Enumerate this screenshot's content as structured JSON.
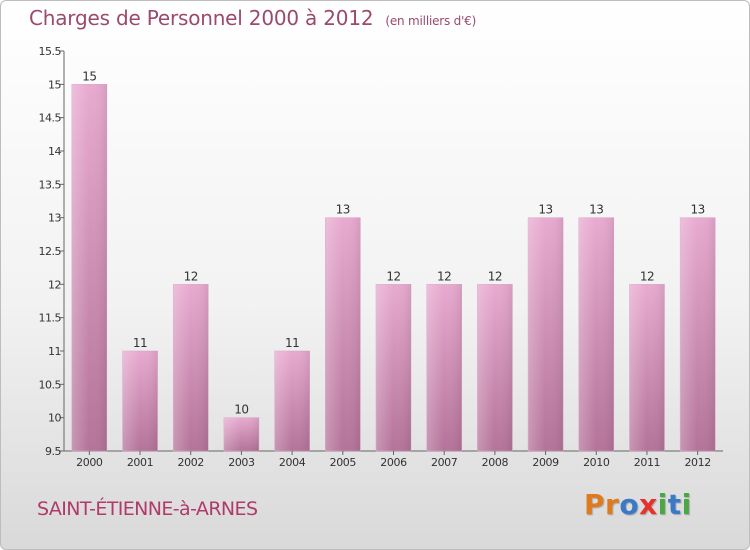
{
  "chart_data": {
    "type": "bar",
    "title": "Charges de Personnel 2000 à 2012",
    "unit": "(en milliers d'€)",
    "categories": [
      "2000",
      "2001",
      "2002",
      "2003",
      "2004",
      "2005",
      "2006",
      "2007",
      "2008",
      "2009",
      "2010",
      "2011",
      "2012"
    ],
    "values": [
      15,
      11,
      12,
      10,
      11,
      13,
      12,
      12,
      12,
      13,
      13,
      12,
      13
    ],
    "ylim": [
      9.5,
      15.5
    ],
    "yticks": [
      9.5,
      10,
      10.5,
      11,
      11.5,
      12,
      12.5,
      13,
      13.5,
      14,
      14.5,
      15,
      15.5
    ],
    "xlabel": "",
    "ylabel": "",
    "grid": false,
    "bar_color": "#e4a6cb"
  },
  "footer": {
    "commune": "SAINT-ÉTIENNE-à-ARNES",
    "brand_letters": [
      {
        "ch": "P",
        "color": "#e07a1f"
      },
      {
        "ch": "r",
        "color": "#e07a1f"
      },
      {
        "ch": "o",
        "color": "#3a79c8"
      },
      {
        "ch": "x",
        "color": "#e5332a"
      },
      {
        "ch": "i",
        "color": "#49a843"
      },
      {
        "ch": "t",
        "color": "#3a79c8"
      },
      {
        "ch": "i",
        "color": "#49a843"
      }
    ]
  }
}
